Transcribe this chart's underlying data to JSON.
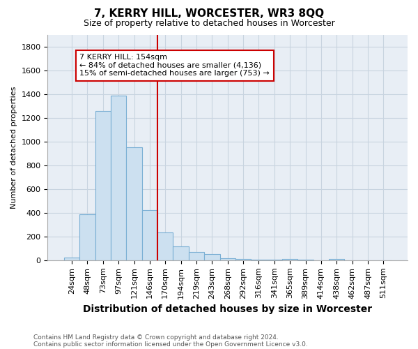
{
  "title": "7, KERRY HILL, WORCESTER, WR3 8QQ",
  "subtitle": "Size of property relative to detached houses in Worcester",
  "xlabel": "Distribution of detached houses by size in Worcester",
  "ylabel": "Number of detached properties",
  "footnote1": "Contains HM Land Registry data © Crown copyright and database right 2024.",
  "footnote2": "Contains public sector information licensed under the Open Government Licence v3.0.",
  "categories": [
    "24sqm",
    "48sqm",
    "73sqm",
    "97sqm",
    "121sqm",
    "146sqm",
    "170sqm",
    "194sqm",
    "219sqm",
    "243sqm",
    "268sqm",
    "292sqm",
    "316sqm",
    "341sqm",
    "365sqm",
    "389sqm",
    "414sqm",
    "438sqm",
    "462sqm",
    "487sqm",
    "511sqm"
  ],
  "values": [
    25,
    390,
    1260,
    1390,
    950,
    420,
    235,
    115,
    70,
    50,
    15,
    8,
    5,
    3,
    8,
    3,
    0,
    8,
    0,
    0,
    0
  ],
  "bar_color": "#cce0f0",
  "bar_edge_color": "#7aafd4",
  "grid_color": "#c8d4e0",
  "plot_bg_color": "#e8eef5",
  "fig_bg_color": "#ffffff",
  "red_line_color": "#cc0000",
  "red_line_x": 5.5,
  "annotation_text": "7 KERRY HILL: 154sqm\n← 84% of detached houses are smaller (4,136)\n15% of semi-detached houses are larger (753) →",
  "annotation_box_facecolor": "white",
  "annotation_box_edgecolor": "#cc0000",
  "ylim": [
    0,
    1900
  ],
  "yticks": [
    0,
    200,
    400,
    600,
    800,
    1000,
    1200,
    1400,
    1600,
    1800
  ],
  "title_fontsize": 11,
  "subtitle_fontsize": 9,
  "ylabel_fontsize": 8,
  "xlabel_fontsize": 10,
  "tick_fontsize": 8,
  "annot_fontsize": 8,
  "footnote_fontsize": 6.5
}
